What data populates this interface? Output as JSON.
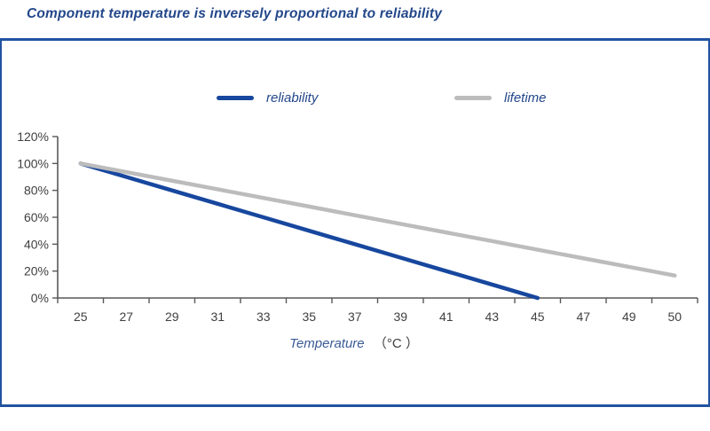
{
  "page": {
    "title": "Component temperature is inversely proportional to reliability"
  },
  "colors": {
    "title_navy": "#23478a",
    "panel_border_blue": "#2153a0",
    "reliability_line": "#17479e",
    "lifetime_line": "#bcbcbc",
    "axis_line": "#595959",
    "tick_text": "#404040"
  },
  "legend": {
    "items": [
      {
        "label": "reliability",
        "color": "#17479e"
      },
      {
        "label": "lifetime",
        "color": "#bcbcbc"
      }
    ]
  },
  "xaxis": {
    "label_main": "Temperature",
    "label_unit": "（°C ）"
  },
  "chart_data": {
    "type": "line",
    "title": "Component temperature is inversely proportional to reliability",
    "xlabel": "Temperature （°C）",
    "ylabel": "",
    "categories": [
      "25",
      "27",
      "29",
      "31",
      "33",
      "35",
      "37",
      "39",
      "41",
      "43",
      "45",
      "47",
      "49",
      "50"
    ],
    "series": [
      {
        "name": "reliability",
        "color": "#17479e",
        "values": [
          100,
          90,
          80,
          70,
          60,
          50,
          40,
          30,
          20,
          10,
          0,
          null,
          null,
          null
        ]
      },
      {
        "name": "lifetime",
        "color": "#bcbcbc",
        "values": [
          100,
          93.6,
          87.2,
          80.8,
          74.4,
          68,
          61.5,
          55.1,
          48.7,
          42.3,
          35.9,
          29.5,
          23.1,
          16.7
        ]
      }
    ],
    "ylim": [
      0,
      120
    ],
    "y_ticks": [
      "0%",
      "20%",
      "40%",
      "60%",
      "80%",
      "100%",
      "120%"
    ],
    "grid": false,
    "legend_position": "top-center"
  }
}
